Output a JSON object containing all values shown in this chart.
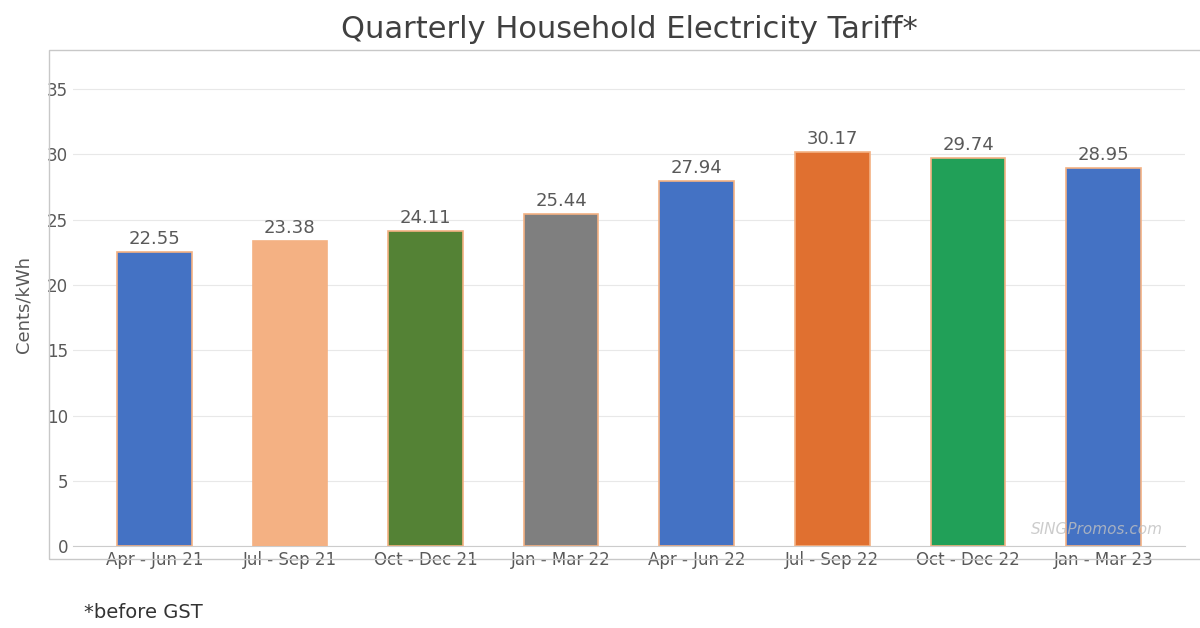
{
  "title": "Quarterly Household Electricity Tariff*",
  "ylabel": "Cents/kWh",
  "footnote": "*before GST",
  "watermark": "SINGPromos.com",
  "categories": [
    "Apr - Jun 21",
    "Jul - Sep 21",
    "Oct - Dec 21",
    "Jan - Mar 22",
    "Apr - Jun 22",
    "Jul - Sep 22",
    "Oct - Dec 22",
    "Jan - Mar 23"
  ],
  "values": [
    22.55,
    23.38,
    24.11,
    25.44,
    27.94,
    30.17,
    29.74,
    28.95
  ],
  "bar_colors": [
    "#4472C4",
    "#F4B183",
    "#548235",
    "#7F7F7F",
    "#4472C4",
    "#E07030",
    "#21A058",
    "#4472C4"
  ],
  "bar_edge_color": "#F4B183",
  "ylim": [
    0,
    37
  ],
  "yticks": [
    0,
    5,
    10,
    15,
    20,
    25,
    30,
    35
  ],
  "title_fontsize": 22,
  "label_fontsize": 13,
  "tick_fontsize": 12,
  "value_fontsize": 13,
  "footnote_fontsize": 14,
  "background_color": "#FFFFFF",
  "chart_bg_color": "#FFFFFF",
  "title_color": "#404040",
  "value_label_color": "#595959",
  "watermark_color": "#C0C0C0",
  "tick_color": "#595959",
  "bar_width": 0.55,
  "bar_edge_width": 1.2
}
